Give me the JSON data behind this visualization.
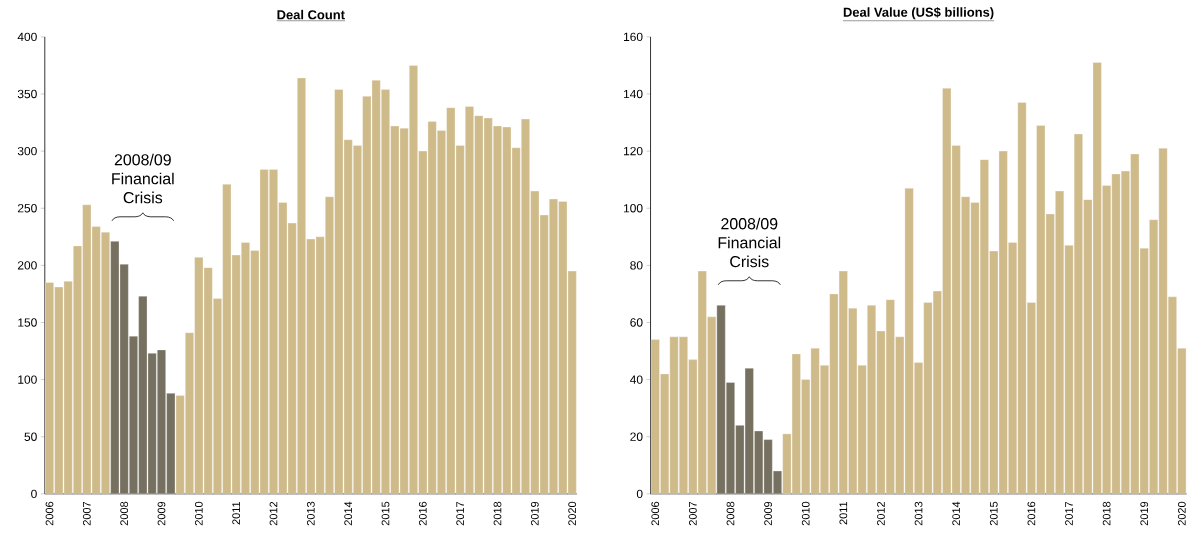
{
  "chart_data": [
    {
      "type": "bar",
      "title": "Deal Count",
      "categories": [
        "2006",
        null,
        null,
        null,
        "2007",
        null,
        null,
        null,
        "2008",
        null,
        null,
        null,
        "2009",
        null,
        null,
        null,
        "2010",
        null,
        null,
        null,
        "2011",
        null,
        null,
        null,
        "2012",
        null,
        null,
        null,
        "2013",
        null,
        null,
        null,
        "2014",
        null,
        null,
        null,
        "2015",
        null,
        null,
        null,
        "2016",
        null,
        null,
        null,
        "2017",
        null,
        null,
        null,
        "2018",
        null,
        null,
        null,
        "2019",
        null,
        null,
        null,
        "2020"
      ],
      "values": [
        185,
        181,
        186,
        217,
        253,
        234,
        229,
        221,
        201,
        138,
        173,
        123,
        126,
        88,
        86,
        141,
        207,
        198,
        171,
        271,
        209,
        220,
        213,
        284,
        284,
        255,
        237,
        364,
        223,
        225,
        260,
        354,
        310,
        305,
        348,
        362,
        354,
        322,
        320,
        375,
        300,
        326,
        318,
        338,
        305,
        339,
        331,
        329,
        322,
        321,
        303,
        328,
        265,
        244,
        258,
        256,
        195
      ],
      "colors": [
        "#cfba8a",
        "#cfba8a",
        "#cfba8a",
        "#cfba8a",
        "#cfba8a",
        "#cfba8a",
        "#cfba8a",
        "#767060",
        "#767060",
        "#767060",
        "#767060",
        "#767060",
        "#767060",
        "#767060",
        "#cfba8a",
        "#cfba8a",
        "#cfba8a",
        "#cfba8a",
        "#cfba8a",
        "#cfba8a",
        "#cfba8a",
        "#cfba8a",
        "#cfba8a",
        "#cfba8a",
        "#cfba8a",
        "#cfba8a",
        "#cfba8a",
        "#cfba8a",
        "#cfba8a",
        "#cfba8a",
        "#cfba8a",
        "#cfba8a",
        "#cfba8a",
        "#cfba8a",
        "#cfba8a",
        "#cfba8a",
        "#cfba8a",
        "#cfba8a",
        "#cfba8a",
        "#cfba8a",
        "#cfba8a",
        "#cfba8a",
        "#cfba8a",
        "#cfba8a",
        "#cfba8a",
        "#cfba8a",
        "#cfba8a",
        "#cfba8a",
        "#cfba8a",
        "#cfba8a",
        "#cfba8a",
        "#cfba8a",
        "#cfba8a",
        "#cfba8a",
        "#cfba8a",
        "#cfba8a",
        "#cfba8a"
      ],
      "ylim": [
        0,
        400
      ],
      "yticks": [
        0,
        50,
        100,
        150,
        200,
        250,
        300,
        350,
        400
      ],
      "annotations": [
        "2008/09 Financial Crisis"
      ]
    },
    {
      "type": "bar",
      "title": "Deal Value (US$ billions)",
      "categories": [
        "2006",
        null,
        null,
        null,
        "2007",
        null,
        null,
        null,
        "2008",
        null,
        null,
        null,
        "2009",
        null,
        null,
        null,
        "2010",
        null,
        null,
        null,
        "2011",
        null,
        null,
        null,
        "2012",
        null,
        null,
        null,
        "2013",
        null,
        null,
        null,
        "2014",
        null,
        null,
        null,
        "2015",
        null,
        null,
        null,
        "2016",
        null,
        null,
        null,
        "2017",
        null,
        null,
        null,
        "2018",
        null,
        null,
        null,
        "2019",
        null,
        null,
        null,
        "2020"
      ],
      "values": [
        54,
        42,
        55,
        55,
        47,
        78,
        62,
        66,
        39,
        24,
        44,
        22,
        19,
        8,
        21,
        49,
        40,
        51,
        45,
        70,
        78,
        65,
        45,
        66,
        57,
        68,
        55,
        107,
        46,
        67,
        71,
        142,
        122,
        104,
        102,
        117,
        85,
        120,
        88,
        137,
        67,
        129,
        98,
        106,
        87,
        126,
        103,
        151,
        108,
        112,
        113,
        119,
        86,
        96,
        121,
        69,
        51
      ],
      "colors": [
        "#cfba8a",
        "#cfba8a",
        "#cfba8a",
        "#cfba8a",
        "#cfba8a",
        "#cfba8a",
        "#cfba8a",
        "#767060",
        "#767060",
        "#767060",
        "#767060",
        "#767060",
        "#767060",
        "#767060",
        "#cfba8a",
        "#cfba8a",
        "#cfba8a",
        "#cfba8a",
        "#cfba8a",
        "#cfba8a",
        "#cfba8a",
        "#cfba8a",
        "#cfba8a",
        "#cfba8a",
        "#cfba8a",
        "#cfba8a",
        "#cfba8a",
        "#cfba8a",
        "#cfba8a",
        "#cfba8a",
        "#cfba8a",
        "#cfba8a",
        "#cfba8a",
        "#cfba8a",
        "#cfba8a",
        "#cfba8a",
        "#cfba8a",
        "#cfba8a",
        "#cfba8a",
        "#cfba8a",
        "#cfba8a",
        "#cfba8a",
        "#cfba8a",
        "#cfba8a",
        "#cfba8a",
        "#cfba8a",
        "#cfba8a",
        "#cfba8a",
        "#cfba8a",
        "#cfba8a",
        "#cfba8a",
        "#cfba8a",
        "#cfba8a",
        "#cfba8a",
        "#cfba8a",
        "#cfba8a",
        "#cfba8a"
      ],
      "ylim": [
        0,
        160
      ],
      "yticks": [
        0,
        20,
        40,
        60,
        80,
        100,
        120,
        140,
        160
      ],
      "annotations": [
        "2008/09 Financial Crisis"
      ]
    }
  ]
}
